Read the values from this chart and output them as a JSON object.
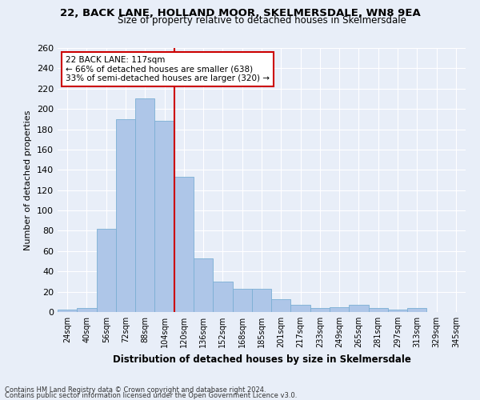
{
  "title1": "22, BACK LANE, HOLLAND MOOR, SKELMERSDALE, WN8 9EA",
  "title2": "Size of property relative to detached houses in Skelmersdale",
  "xlabel": "Distribution of detached houses by size in Skelmersdale",
  "ylabel": "Number of detached properties",
  "bar_labels": [
    "24sqm",
    "40sqm",
    "56sqm",
    "72sqm",
    "88sqm",
    "104sqm",
    "120sqm",
    "136sqm",
    "152sqm",
    "168sqm",
    "185sqm",
    "201sqm",
    "217sqm",
    "233sqm",
    "249sqm",
    "265sqm",
    "281sqm",
    "297sqm",
    "313sqm",
    "329sqm",
    "345sqm"
  ],
  "bar_values": [
    2,
    4,
    82,
    190,
    210,
    188,
    133,
    53,
    30,
    23,
    23,
    13,
    7,
    4,
    5,
    7,
    4,
    2,
    4,
    0,
    0
  ],
  "bar_color": "#aec6e8",
  "bar_edge_color": "#7bafd4",
  "background_color": "#e8eef8",
  "grid_color": "#ffffff",
  "annotation_text_line1": "22 BACK LANE: 117sqm",
  "annotation_text_line2": "← 66% of detached houses are smaller (638)",
  "annotation_text_line3": "33% of semi-detached houses are larger (320) →",
  "annotation_box_color": "#ffffff",
  "annotation_box_edge": "#cc0000",
  "vline_color": "#cc0000",
  "footnote1": "Contains HM Land Registry data © Crown copyright and database right 2024.",
  "footnote2": "Contains public sector information licensed under the Open Government Licence v3.0.",
  "ylim": [
    0,
    260
  ],
  "ytick_max": 260,
  "ytick_step": 20
}
